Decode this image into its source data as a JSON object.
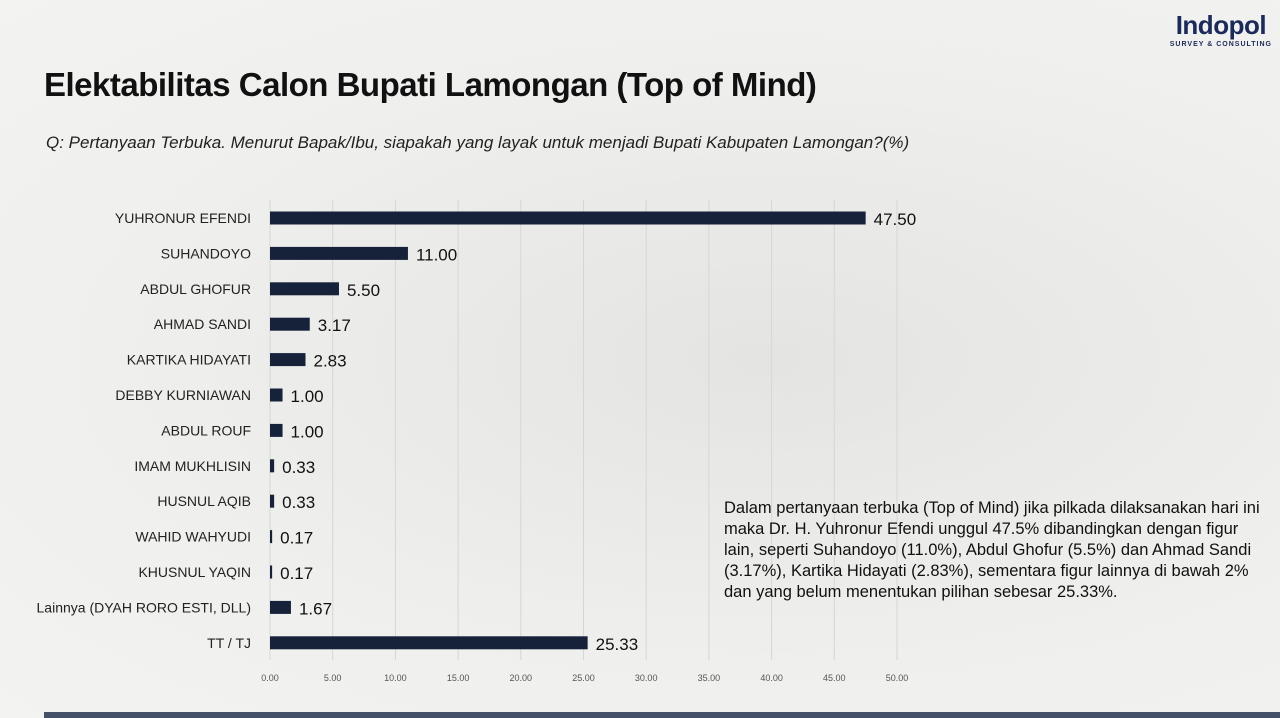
{
  "logo": {
    "brand": "Indopol",
    "sub": "SURVEY & CONSULTING"
  },
  "title": "Elektabilitas Calon Bupati Lamongan (Top of Mind)",
  "question": "Q: Pertanyaan Terbuka. Menurut Bapak/Ibu, siapakah yang layak untuk menjadi Bupati Kabupaten Lamongan?(%)",
  "note": "Dalam pertanyaan terbuka (Top of Mind) jika pilkada dilaksanakan hari ini maka Dr. H. Yuhronur Efendi unggul 47.5% dibandingkan dengan figur lain, seperti Suhandoyo (11.0%), Abdul Ghofur (5.5%) dan Ahmad Sandi (3.17%), Kartika Hidayati (2.83%), sementara figur lainnya di bawah 2% dan yang belum menentukan pilihan sebesar 25.33%.",
  "colors": {
    "bar": "#16213a"
  },
  "chart_data": {
    "type": "bar",
    "orientation": "horizontal",
    "categories": [
      "YUHRONUR EFENDI",
      "SUHANDOYO",
      "ABDUL GHOFUR",
      "AHMAD SANDI",
      "KARTIKA HIDAYATI",
      "DEBBY KURNIAWAN",
      "ABDUL ROUF",
      "IMAM MUKHLISIN",
      "HUSNUL AQIB",
      "WAHID WAHYUDI",
      "KHUSNUL YAQIN",
      "Lainnya (DYAH RORO ESTI, DLL)",
      "TT / TJ"
    ],
    "values": [
      47.5,
      11.0,
      5.5,
      3.17,
      2.83,
      1.0,
      1.0,
      0.33,
      0.33,
      0.17,
      0.17,
      1.67,
      25.33
    ],
    "labels": [
      "47.50",
      "11.00",
      "5.50",
      "3.17",
      "2.83",
      "1.00",
      "1.00",
      "0.33",
      "0.33",
      "0.17",
      "0.17",
      "1.67",
      "25.33"
    ],
    "xticks": [
      "0.00",
      "5.00",
      "10.00",
      "15.00",
      "20.00",
      "25.00",
      "30.00",
      "35.00",
      "40.00",
      "45.00",
      "50.00"
    ],
    "xlim": [
      0,
      50
    ],
    "grid": true,
    "title": "Elektabilitas Calon Bupati Lamongan (Top of Mind)",
    "xlabel": "",
    "ylabel": ""
  }
}
